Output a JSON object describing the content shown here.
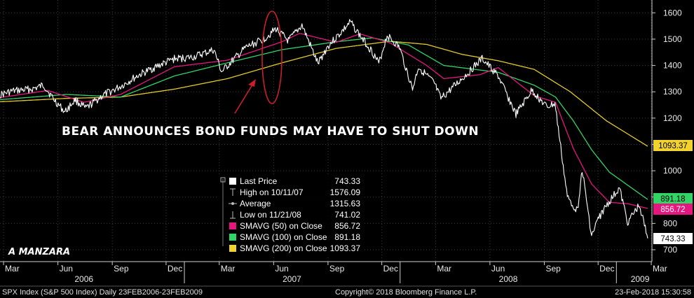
{
  "chart_data": {
    "type": "line",
    "title": "",
    "xlabel": "",
    "ylabel": "",
    "ylim": [
      700,
      1650
    ],
    "y_ticks": [
      700,
      800,
      900,
      1000,
      1100,
      1200,
      1300,
      1400,
      1500,
      1600
    ],
    "month_ticks": [
      "Mar",
      "Jun",
      "Sep",
      "Dec",
      "Mar",
      "Jun",
      "Sep",
      "Dec",
      "Mar",
      "Jun",
      "Sep",
      "Dec",
      "Mar"
    ],
    "year_labels": [
      "2006",
      "2007",
      "2008",
      "2009"
    ],
    "grid": true,
    "legend": "bottom-center",
    "series": [
      {
        "name": "Last Price",
        "color": "#ffffff",
        "points": [
          [
            "2006-02-23",
            1288
          ],
          [
            "2006-03-15",
            1302
          ],
          [
            "2006-04-20",
            1311
          ],
          [
            "2006-05-08",
            1325
          ],
          [
            "2006-05-25",
            1271
          ],
          [
            "2006-06-13",
            1223
          ],
          [
            "2006-06-30",
            1270
          ],
          [
            "2006-07-18",
            1236
          ],
          [
            "2006-08-15",
            1285
          ],
          [
            "2006-09-15",
            1320
          ],
          [
            "2006-10-15",
            1362
          ],
          [
            "2006-11-15",
            1396
          ],
          [
            "2006-12-15",
            1425
          ],
          [
            "2007-01-15",
            1431
          ],
          [
            "2007-02-20",
            1459
          ],
          [
            "2007-03-05",
            1375
          ],
          [
            "2007-03-20",
            1410
          ],
          [
            "2007-04-15",
            1468
          ],
          [
            "2007-05-15",
            1500
          ],
          [
            "2007-06-05",
            1539
          ],
          [
            "2007-06-26",
            1493
          ],
          [
            "2007-07-19",
            1553
          ],
          [
            "2007-08-15",
            1406
          ],
          [
            "2007-09-01",
            1474
          ],
          [
            "2007-09-20",
            1518
          ],
          [
            "2007-10-09",
            1565
          ],
          [
            "2007-10-25",
            1514
          ],
          [
            "2007-11-15",
            1452
          ],
          [
            "2007-11-26",
            1407
          ],
          [
            "2007-12-10",
            1515
          ],
          [
            "2007-12-31",
            1468
          ],
          [
            "2008-01-22",
            1310
          ],
          [
            "2008-02-01",
            1395
          ],
          [
            "2008-02-28",
            1331
          ],
          [
            "2008-03-10",
            1273
          ],
          [
            "2008-04-15",
            1350
          ],
          [
            "2008-05-19",
            1426
          ],
          [
            "2008-06-15",
            1360
          ],
          [
            "2008-07-15",
            1214
          ],
          [
            "2008-08-11",
            1306
          ],
          [
            "2008-09-05",
            1242
          ],
          [
            "2008-09-19",
            1255
          ],
          [
            "2008-10-10",
            899
          ],
          [
            "2008-10-27",
            848
          ],
          [
            "2008-11-04",
            1005
          ],
          [
            "2008-11-20",
            752
          ],
          [
            "2008-12-01",
            816
          ],
          [
            "2008-12-15",
            868
          ],
          [
            "2009-01-06",
            934
          ],
          [
            "2009-01-20",
            805
          ],
          [
            "2009-02-09",
            870
          ],
          [
            "2009-02-23",
            743
          ]
        ]
      },
      {
        "name": "SMAVG (50) on Close",
        "color": "#e6167f",
        "points": [
          [
            "2006-02-23",
            1278
          ],
          [
            "2006-05-15",
            1305
          ],
          [
            "2006-07-15",
            1260
          ],
          [
            "2006-09-15",
            1290
          ],
          [
            "2006-12-15",
            1395
          ],
          [
            "2007-03-15",
            1420
          ],
          [
            "2007-06-15",
            1490
          ],
          [
            "2007-07-15",
            1522
          ],
          [
            "2007-09-15",
            1488
          ],
          [
            "2007-10-25",
            1520
          ],
          [
            "2007-12-15",
            1486
          ],
          [
            "2008-02-15",
            1400
          ],
          [
            "2008-03-15",
            1350
          ],
          [
            "2008-05-15",
            1365
          ],
          [
            "2008-06-15",
            1392
          ],
          [
            "2008-08-15",
            1285
          ],
          [
            "2008-09-20",
            1260
          ],
          [
            "2008-10-20",
            1085
          ],
          [
            "2008-11-20",
            950
          ],
          [
            "2008-12-20",
            880
          ],
          [
            "2009-01-20",
            875
          ],
          [
            "2009-02-23",
            857
          ]
        ]
      },
      {
        "name": "SMAVG (100) on Close",
        "color": "#33d466",
        "points": [
          [
            "2006-02-23",
            1270
          ],
          [
            "2006-06-15",
            1290
          ],
          [
            "2006-09-15",
            1280
          ],
          [
            "2006-12-15",
            1360
          ],
          [
            "2007-03-15",
            1410
          ],
          [
            "2007-06-15",
            1460
          ],
          [
            "2007-09-15",
            1490
          ],
          [
            "2007-11-15",
            1505
          ],
          [
            "2008-01-15",
            1478
          ],
          [
            "2008-03-15",
            1400
          ],
          [
            "2008-06-15",
            1374
          ],
          [
            "2008-08-15",
            1325
          ],
          [
            "2008-09-20",
            1280
          ],
          [
            "2008-10-20",
            1190
          ],
          [
            "2008-11-20",
            1080
          ],
          [
            "2008-12-20",
            995
          ],
          [
            "2009-02-23",
            891
          ]
        ]
      },
      {
        "name": "SMAVG (200) on Close",
        "color": "#e3ca2a",
        "points": [
          [
            "2006-02-23",
            1262
          ],
          [
            "2006-06-15",
            1275
          ],
          [
            "2006-09-15",
            1280
          ],
          [
            "2006-12-15",
            1310
          ],
          [
            "2007-03-15",
            1350
          ],
          [
            "2007-06-15",
            1410
          ],
          [
            "2007-09-15",
            1465
          ],
          [
            "2007-12-15",
            1492
          ],
          [
            "2008-02-15",
            1480
          ],
          [
            "2008-04-15",
            1442
          ],
          [
            "2008-06-15",
            1418
          ],
          [
            "2008-08-15",
            1385
          ],
          [
            "2008-10-15",
            1300
          ],
          [
            "2008-12-15",
            1190
          ],
          [
            "2009-02-23",
            1093
          ]
        ]
      }
    ],
    "last_value_tags": [
      {
        "label": "1093.37",
        "value": 1093.37,
        "bg": "#f1d22f",
        "fg": "#000000"
      },
      {
        "label": "891.18",
        "value": 891.18,
        "bg": "#33d466",
        "fg": "#000000"
      },
      {
        "label": "856.72",
        "value": 856.72,
        "bg": "#e6167f",
        "fg": "#ffffff"
      },
      {
        "label": "743.33",
        "value": 743.33,
        "bg": "#ffffff",
        "fg": "#000000"
      }
    ],
    "annotations": {
      "headline": "BEAR ANNOUNCES BOND FUNDS MAY HAVE TO SHUT DOWN",
      "author": "A MANZARA"
    },
    "legend_box": {
      "rows": [
        {
          "symbol": "square",
          "color": "#ffffff",
          "label": "Last Price",
          "value": "743.33"
        },
        {
          "symbol": "high",
          "color": "#bbbbbb",
          "label": "High on 10/11/07",
          "value": "1576.09"
        },
        {
          "symbol": "avg",
          "color": "#bbbbbb",
          "label": "Average",
          "value": "1315.63"
        },
        {
          "symbol": "low",
          "color": "#bbbbbb",
          "label": "Low on 11/21/08",
          "value": "741.02"
        },
        {
          "symbol": "square",
          "color": "#e6167f",
          "label": "SMAVG (50) on Close",
          "value": "856.72"
        },
        {
          "symbol": "square",
          "color": "#33d466",
          "label": "SMAVG (100) on Close",
          "value": "891.18"
        },
        {
          "symbol": "square",
          "color": "#f1d22f",
          "label": "SMAVG (200) on Close",
          "value": "1093.37"
        }
      ]
    }
  },
  "footer": {
    "left": "SPX Index (S&P 500 Index)  Daily 23FEB2006-23FEB2009",
    "center": "Copyright© 2018 Bloomberg Finance L.P.",
    "right": "23-Feb-2018 15:30:58"
  }
}
